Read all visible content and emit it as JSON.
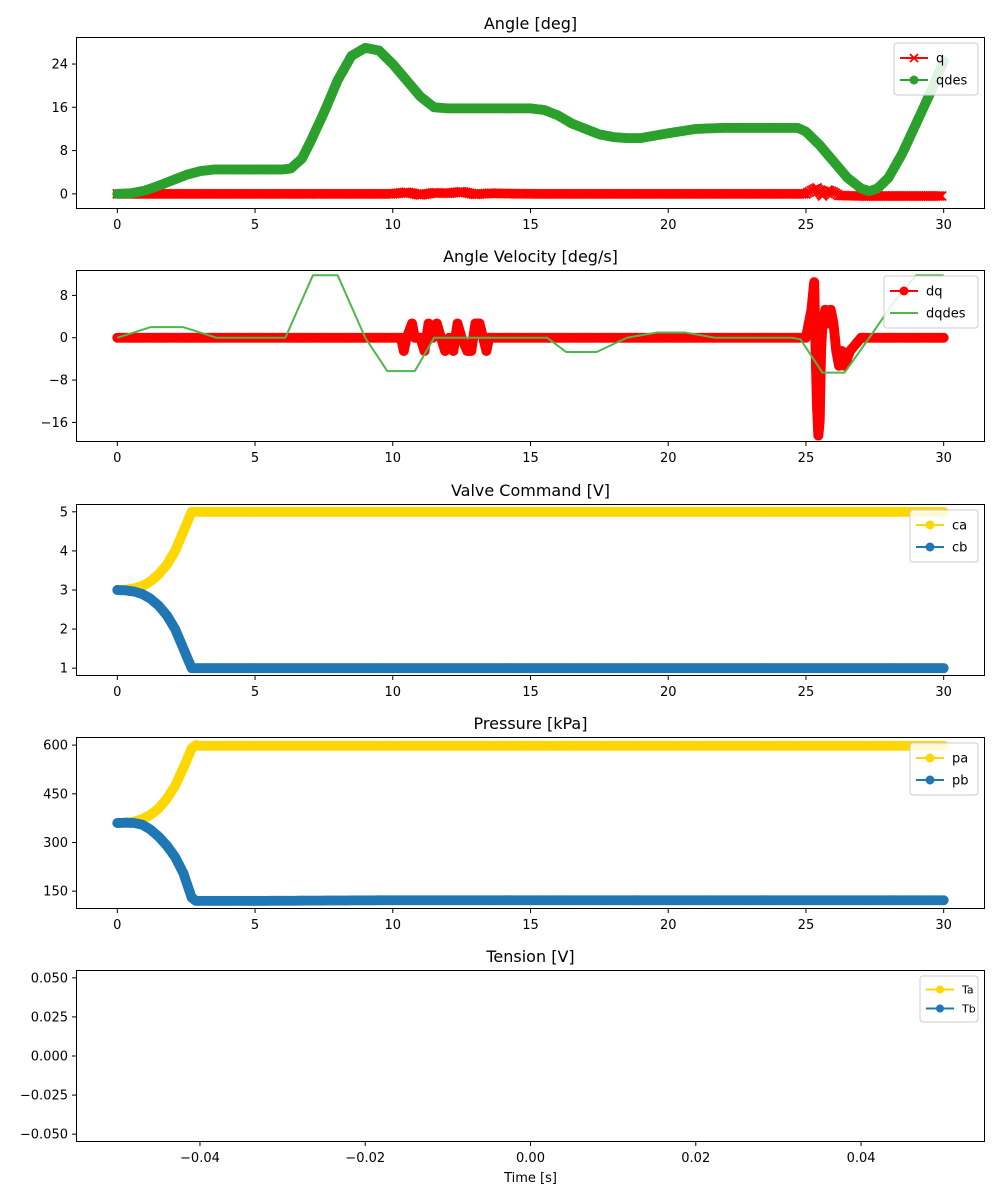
{
  "colors": {
    "q": "#ff0000",
    "qdes": "#2ca02c",
    "dq": "#ff0000",
    "dqdes": "#4cb84c",
    "a": "#ffd700",
    "b": "#1f77b4"
  },
  "chart_data": [
    {
      "type": "line",
      "title": "Angle [deg]",
      "xlabel": "",
      "ylabel": "",
      "xlim": [
        -1.5,
        31.5
      ],
      "ylim": [
        -2.8,
        29
      ],
      "x_ticks": [
        0,
        5,
        10,
        15,
        20,
        25,
        30
      ],
      "y_ticks": [
        0,
        8,
        16,
        24
      ],
      "legend_position": "top-right",
      "series": [
        {
          "name": "q",
          "color_key": "q",
          "marker": "x",
          "line": true,
          "x": [
            0,
            5,
            10,
            10.5,
            11,
            11.5,
            12,
            12.5,
            13,
            13.5,
            15,
            20,
            25,
            25.2,
            25.4,
            25.6,
            25.8,
            26,
            26.2,
            27,
            28,
            29,
            30
          ],
          "y": [
            0,
            0,
            0,
            0.3,
            -0.2,
            0.2,
            0.1,
            0.4,
            -0.1,
            0.1,
            0,
            0,
            0,
            0.6,
            1.1,
            -0.4,
            0.7,
            0.3,
            -0.3,
            -0.4,
            -0.4,
            -0.4,
            -0.4
          ]
        },
        {
          "name": "qdes",
          "color_key": "qdes",
          "marker": "o",
          "line": true,
          "x": [
            0,
            0.5,
            1,
            1.5,
            2,
            2.5,
            3,
            3.5,
            4,
            5,
            6,
            6.3,
            6.7,
            7,
            7.5,
            8,
            8.5,
            9,
            9.5,
            10,
            10.5,
            11,
            11.5,
            12,
            13,
            14,
            15,
            15.5,
            16,
            16.5,
            17,
            17.5,
            18,
            18.5,
            19,
            20,
            21,
            22,
            23,
            24,
            24.7,
            25,
            25.5,
            26,
            26.5,
            27,
            27.3,
            27.6,
            28,
            28.5,
            29,
            29.5,
            30
          ],
          "y": [
            0,
            0.1,
            0.6,
            1.5,
            2.5,
            3.5,
            4.2,
            4.5,
            4.5,
            4.5,
            4.5,
            4.7,
            6.5,
            9.5,
            15,
            21,
            25.5,
            27,
            26.5,
            24,
            21,
            18,
            16,
            15.8,
            15.8,
            15.8,
            15.8,
            15.5,
            14.5,
            13,
            12,
            11,
            10.5,
            10.3,
            10.3,
            11.2,
            12,
            12.2,
            12.2,
            12.2,
            12.2,
            11.5,
            9,
            6,
            3,
            1,
            0.5,
            1,
            3,
            7.5,
            13,
            18.5,
            24.5
          ]
        }
      ]
    },
    {
      "type": "line",
      "title": "Angle Velocity [deg/s]",
      "xlabel": "",
      "ylabel": "",
      "xlim": [
        -1.5,
        31.5
      ],
      "ylim": [
        -19.7,
        12.8
      ],
      "x_ticks": [
        0,
        5,
        10,
        15,
        20,
        25,
        30
      ],
      "y_ticks": [
        -16,
        -8,
        0,
        8
      ],
      "legend_position": "top-right",
      "series": [
        {
          "name": "dq",
          "color_key": "dq",
          "marker": "o",
          "line": true,
          "x": [
            0,
            5,
            10,
            10.3,
            10.4,
            10.5,
            10.7,
            10.8,
            11,
            11.15,
            11.3,
            11.45,
            11.6,
            11.75,
            11.9,
            12.05,
            12.2,
            12.35,
            12.5,
            12.7,
            12.85,
            13,
            13.15,
            13.4,
            13.5,
            15,
            20,
            25,
            25.1,
            25.2,
            25.25,
            25.3,
            25.35,
            25.4,
            25.45,
            25.5,
            25.55,
            25.6,
            25.7,
            25.8,
            25.9,
            26,
            26.1,
            26.2,
            26.3,
            26.4,
            26.6,
            27,
            30
          ],
          "y": [
            0,
            0,
            0,
            0,
            -2.5,
            0,
            2.7,
            0,
            0,
            -2.5,
            2.7,
            0,
            2.7,
            0,
            -2.5,
            0,
            -2.5,
            2.7,
            0,
            -2.5,
            -2.5,
            2.7,
            2.7,
            -2.5,
            0,
            0,
            0,
            0,
            2.7,
            5.3,
            8,
            10.5,
            -2.5,
            -13,
            -18.5,
            -15.8,
            -2.5,
            2.7,
            5.3,
            2.7,
            5.3,
            2.7,
            -2.5,
            -5.3,
            -2.5,
            -5.3,
            -2.5,
            0,
            0
          ]
        },
        {
          "name": "dqdes",
          "color_key": "dqdes",
          "marker": "none",
          "line": true,
          "x": [
            0,
            1.2,
            2.4,
            3.6,
            4.8,
            6.1,
            7.1,
            8.0,
            9.0,
            9.8,
            10.8,
            11.5,
            12.5,
            14.5,
            15.6,
            16.3,
            17.4,
            18.5,
            19.6,
            20.6,
            21.7,
            23.0,
            24.5,
            24.8,
            25.6,
            26.4,
            27.3,
            28.2,
            29.0,
            30.0
          ],
          "y": [
            0,
            2,
            2,
            0,
            0,
            0,
            11.8,
            11.8,
            0,
            -6.3,
            -6.3,
            0,
            0,
            0,
            0,
            -2.7,
            -2.7,
            0,
            1,
            1,
            0,
            0,
            0,
            -0.3,
            -6.6,
            -6.6,
            0,
            6.8,
            11.8,
            11.8
          ]
        }
      ]
    },
    {
      "type": "line",
      "title": "Valve Command [V]",
      "xlabel": "",
      "ylabel": "",
      "xlim": [
        -1.5,
        31.5
      ],
      "ylim": [
        0.8,
        5.2
      ],
      "x_ticks": [
        0,
        5,
        10,
        15,
        20,
        25,
        30
      ],
      "y_ticks": [
        1,
        2,
        3,
        4,
        5
      ],
      "legend_position": "top-right",
      "series": [
        {
          "name": "ca",
          "color_key": "a",
          "marker": "o",
          "line": true,
          "x": [
            0,
            0.3,
            0.6,
            0.9,
            1.2,
            1.5,
            1.8,
            2.1,
            2.4,
            2.7,
            3,
            5,
            10,
            15,
            20,
            25,
            30
          ],
          "y": [
            3,
            3.01,
            3.04,
            3.1,
            3.22,
            3.4,
            3.65,
            4.0,
            4.5,
            5,
            5,
            5,
            5,
            5,
            5,
            5,
            5
          ]
        },
        {
          "name": "cb",
          "color_key": "b",
          "marker": "o",
          "line": true,
          "x": [
            0,
            0.3,
            0.6,
            0.9,
            1.2,
            1.5,
            1.8,
            2.1,
            2.4,
            2.7,
            3,
            5,
            10,
            15,
            20,
            25,
            30
          ],
          "y": [
            3,
            2.99,
            2.96,
            2.9,
            2.78,
            2.6,
            2.35,
            2.0,
            1.5,
            1,
            1,
            1,
            1,
            1,
            1,
            1,
            1
          ]
        }
      ]
    },
    {
      "type": "line",
      "title": "Pressure [kPa]",
      "xlabel": "",
      "ylabel": "",
      "xlim": [
        -1.5,
        31.5
      ],
      "ylim": [
        95,
        625
      ],
      "x_ticks": [
        0,
        5,
        10,
        15,
        20,
        25,
        30
      ],
      "y_ticks": [
        150,
        300,
        450,
        600
      ],
      "legend_position": "top-right",
      "series": [
        {
          "name": "pa",
          "color_key": "a",
          "marker": "o",
          "line": true,
          "x": [
            0,
            0.3,
            0.6,
            0.9,
            1.2,
            1.5,
            1.8,
            2.1,
            2.4,
            2.7,
            2.85,
            3,
            5,
            10,
            15,
            20,
            25,
            30
          ],
          "y": [
            360,
            361,
            364,
            372,
            385,
            405,
            435,
            475,
            530,
            590,
            600,
            598,
            598,
            598,
            598,
            598,
            598,
            598
          ]
        },
        {
          "name": "pb",
          "color_key": "b",
          "marker": "o",
          "line": true,
          "x": [
            0,
            0.3,
            0.6,
            0.9,
            1.2,
            1.5,
            1.8,
            2.1,
            2.4,
            2.7,
            2.85,
            3,
            5,
            10,
            15,
            20,
            25,
            30
          ],
          "y": [
            360,
            361,
            360,
            355,
            340,
            318,
            290,
            255,
            205,
            130,
            120,
            120,
            120,
            122,
            122,
            122,
            122,
            122
          ]
        }
      ]
    },
    {
      "type": "line",
      "title": "Tension [V]",
      "xlabel": "Time [s]",
      "ylabel": "",
      "xlim": [
        -0.055,
        0.055
      ],
      "ylim": [
        -0.055,
        0.055
      ],
      "x_ticks": [
        -0.04,
        -0.02,
        0.0,
        0.02,
        0.04
      ],
      "x_tick_labels": [
        "−0.04",
        "−0.02",
        "0.00",
        "0.02",
        "0.04"
      ],
      "y_ticks": [
        0.05,
        0.025,
        0.0,
        -0.025,
        -0.05
      ],
      "y_tick_labels": [
        "0.050",
        "0.025",
        "0.000",
        "−0.025",
        "−0.050"
      ],
      "legend_position": "top-right",
      "series": [
        {
          "name": "Ta",
          "color_key": "a",
          "marker": "o",
          "line": true,
          "x": [],
          "y": []
        },
        {
          "name": "Tb",
          "color_key": "b",
          "marker": "o",
          "line": true,
          "x": [],
          "y": []
        }
      ]
    }
  ]
}
